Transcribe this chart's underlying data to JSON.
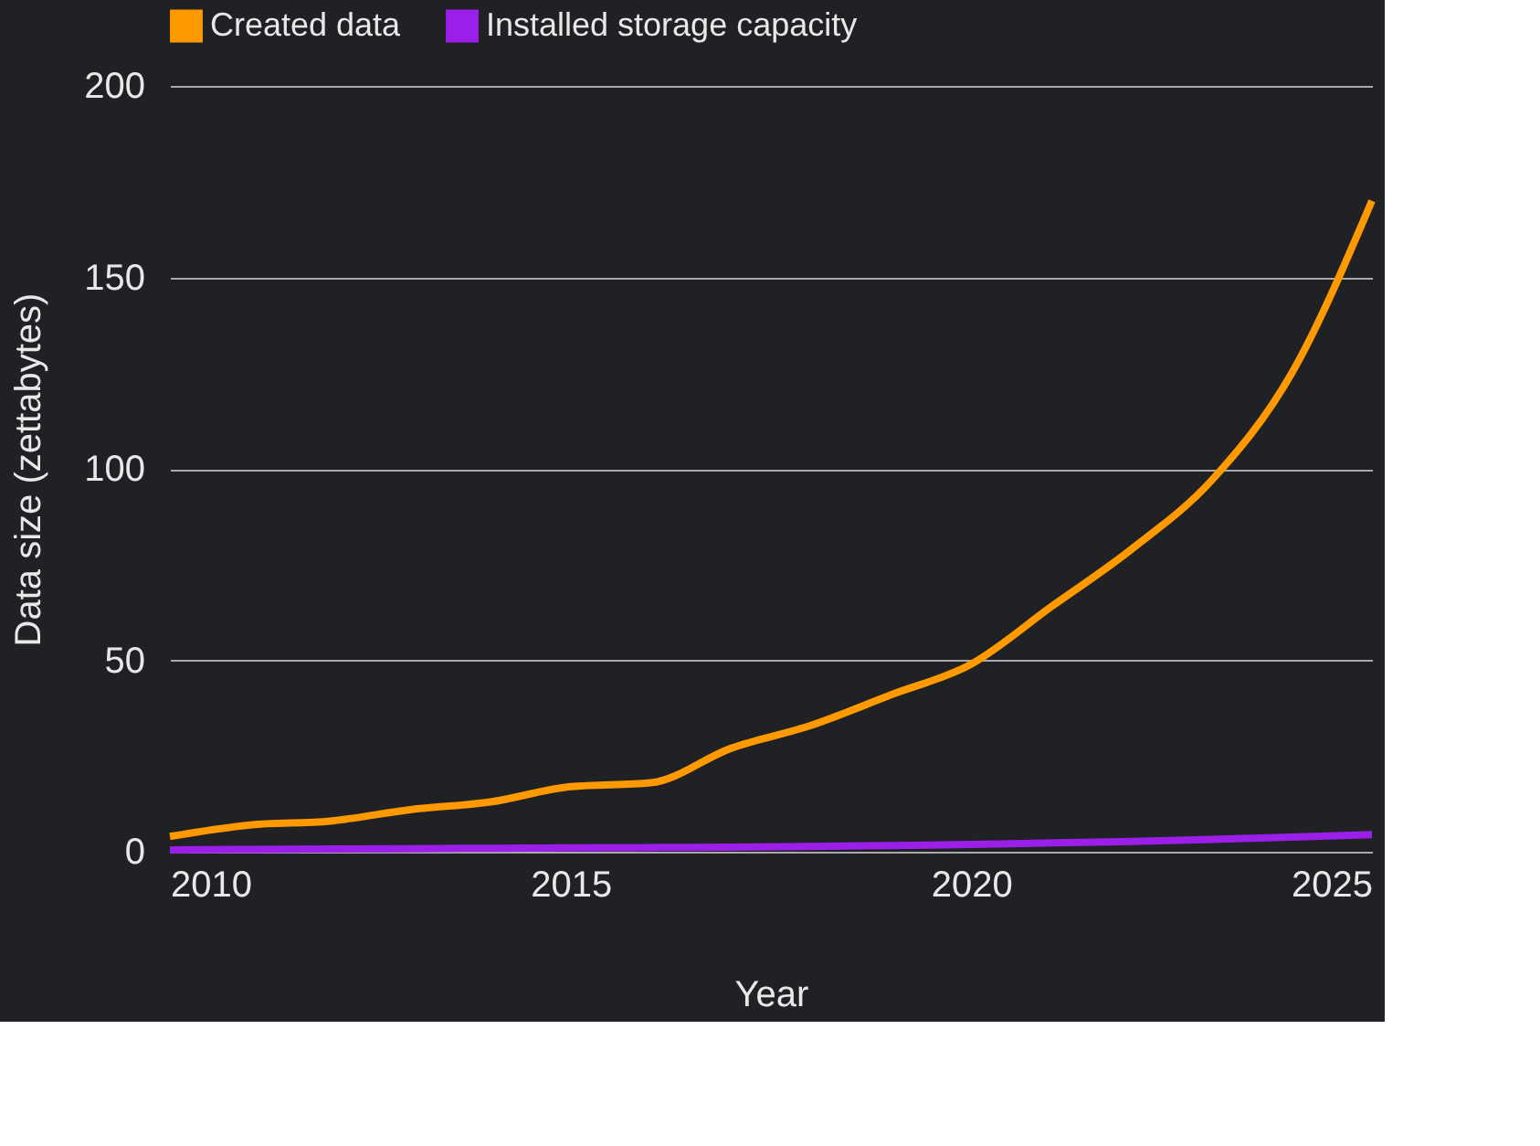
{
  "chart_data": {
    "type": "line",
    "xlabel": "Year",
    "ylabel": "Data size (zettabytes)",
    "x": [
      2010,
      2011,
      2012,
      2013,
      2014,
      2015,
      2016,
      2017,
      2018,
      2019,
      2020,
      2021,
      2022,
      2023,
      2024,
      2025
    ],
    "series": [
      {
        "name": "Created data",
        "color": "#ff9900",
        "values": [
          4,
          7,
          8,
          11,
          13,
          17,
          18,
          27,
          33,
          41,
          49,
          64,
          79,
          97,
          125,
          170
        ]
      },
      {
        "name": "Installed storage capacity",
        "color": "#9b1fe8",
        "values": [
          0.5,
          0.6,
          0.7,
          0.8,
          0.9,
          1,
          1.1,
          1.2,
          1.4,
          1.6,
          1.9,
          2.3,
          2.7,
          3.2,
          3.8,
          4.5
        ]
      }
    ],
    "xlim": [
      2010,
      2025
    ],
    "xticks": [
      2010,
      2015,
      2020,
      2025
    ],
    "ylim": [
      0,
      200
    ],
    "yticks": [
      0,
      50,
      100,
      150,
      200
    ],
    "grid": "y",
    "legend": "top left",
    "line_style": "solid",
    "marker": "none"
  }
}
